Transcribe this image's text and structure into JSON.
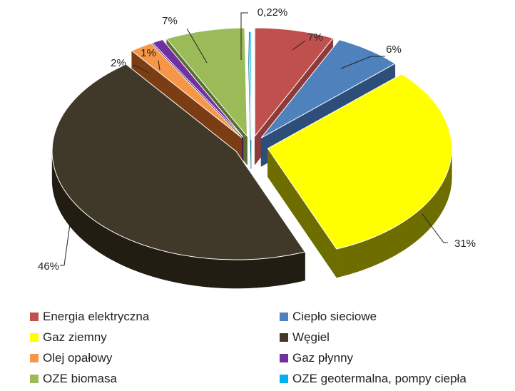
{
  "chart_data": {
    "type": "pie",
    "title": "",
    "legend_position": "bottom",
    "slices": [
      {
        "name": "Energia elektryczna",
        "value": 7,
        "label": "7%",
        "color": "#C0504D",
        "side": "#8E3A38"
      },
      {
        "name": "Ciepło sieciowe",
        "value": 6,
        "label": "6%",
        "color": "#4F81BD",
        "side": "#2E4E7A"
      },
      {
        "name": "Gaz ziemny",
        "value": 31,
        "label": "31%",
        "color": "#FFFF00",
        "side": "#6E6E00"
      },
      {
        "name": "Węgiel",
        "value": 46,
        "label": "46%",
        "color": "#403828",
        "side": "#221D12"
      },
      {
        "name": "Olej opałowy",
        "value": 2,
        "label": "2%",
        "color": "#F79646",
        "side": "#7A3D14"
      },
      {
        "name": "Gaz płynny",
        "value": 1,
        "label": "1%",
        "color": "#7030A0",
        "side": "#3E1A5A"
      },
      {
        "name": "OZE biomasa",
        "value": 7,
        "label": "7%",
        "color": "#9BBB59",
        "side": "#5A6E30"
      },
      {
        "name": "OZE geotermalna, pompy ciepła",
        "value": 0.22,
        "label": "0,22%",
        "color": "#00B0F0",
        "side": "#00708F"
      }
    ]
  }
}
